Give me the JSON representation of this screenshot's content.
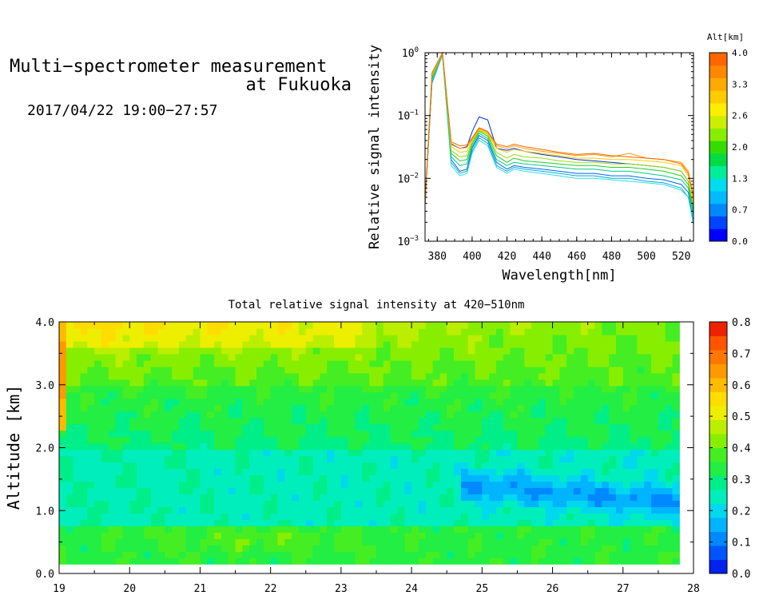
{
  "header": {
    "title_line1": "Multi−spectrometer measurement",
    "title_line2": "at Fukuoka",
    "datetime": "2017/04/22 19:00−27:57"
  },
  "chart_data": [
    {
      "type": "line",
      "ylabel": "Relative signal intensity",
      "xlabel": "Wavelength[nm]",
      "xlim": [
        373,
        527
      ],
      "ylim": [
        0.001,
        1
      ],
      "yscale": "log",
      "xticks": [
        380,
        400,
        420,
        440,
        460,
        480,
        500,
        520
      ],
      "ytick_labels": [
        {
          "base": "10",
          "exp": "0"
        },
        {
          "base": "10",
          "exp": "−1"
        },
        {
          "base": "10",
          "exp": "−2"
        },
        {
          "base": "10",
          "exp": "−3"
        }
      ],
      "x": [
        373,
        377,
        383,
        388,
        393,
        397,
        400,
        404,
        409,
        414,
        420,
        424,
        430,
        440,
        450,
        460,
        470,
        480,
        490,
        500,
        510,
        520,
        524,
        527
      ],
      "series": [
        {
          "color": "#0033cc",
          "values": [
            0.004,
            0.35,
            0.95,
            0.035,
            0.03,
            0.032,
            0.055,
            0.095,
            0.085,
            0.03,
            0.028,
            0.03,
            0.027,
            0.024,
            0.022,
            0.02,
            0.019,
            0.018,
            0.017,
            0.016,
            0.015,
            0.013,
            0.009,
            0.003
          ]
        },
        {
          "color": "#0066ee",
          "values": [
            0.004,
            0.33,
            0.93,
            0.02,
            0.013,
            0.014,
            0.03,
            0.048,
            0.04,
            0.018,
            0.014,
            0.016,
            0.015,
            0.014,
            0.013,
            0.012,
            0.012,
            0.011,
            0.011,
            0.01,
            0.0095,
            0.008,
            0.006,
            0.002
          ]
        },
        {
          "color": "#00aadd",
          "values": [
            0.004,
            0.34,
            0.94,
            0.018,
            0.012,
            0.013,
            0.027,
            0.044,
            0.036,
            0.016,
            0.013,
            0.015,
            0.014,
            0.013,
            0.012,
            0.011,
            0.011,
            0.01,
            0.01,
            0.009,
            0.0085,
            0.007,
            0.005,
            0.002
          ]
        },
        {
          "color": "#33dddd",
          "values": [
            0.004,
            0.36,
            0.95,
            0.016,
            0.011,
            0.012,
            0.025,
            0.04,
            0.033,
            0.015,
            0.012,
            0.014,
            0.013,
            0.012,
            0.011,
            0.01,
            0.01,
            0.0095,
            0.009,
            0.0085,
            0.008,
            0.0065,
            0.005,
            0.0018
          ]
        },
        {
          "color": "#00cc88",
          "values": [
            0.004,
            0.38,
            0.96,
            0.022,
            0.016,
            0.017,
            0.032,
            0.052,
            0.043,
            0.02,
            0.016,
            0.018,
            0.017,
            0.016,
            0.015,
            0.014,
            0.014,
            0.013,
            0.013,
            0.012,
            0.011,
            0.0095,
            0.007,
            0.0025
          ]
        },
        {
          "color": "#22cc22",
          "values": [
            0.004,
            0.4,
            0.97,
            0.025,
            0.019,
            0.02,
            0.035,
            0.056,
            0.047,
            0.023,
            0.018,
            0.021,
            0.019,
            0.018,
            0.017,
            0.016,
            0.016,
            0.015,
            0.015,
            0.014,
            0.013,
            0.011,
            0.008,
            0.003
          ]
        },
        {
          "color": "#99dd00",
          "values": [
            0.004,
            0.42,
            0.98,
            0.028,
            0.022,
            0.023,
            0.038,
            0.058,
            0.05,
            0.026,
            0.021,
            0.024,
            0.022,
            0.021,
            0.019,
            0.018,
            0.018,
            0.017,
            0.017,
            0.016,
            0.015,
            0.013,
            0.009,
            0.0035
          ]
        },
        {
          "color": "#ffcc00",
          "values": [
            0.004,
            0.44,
            0.99,
            0.032,
            0.026,
            0.027,
            0.04,
            0.06,
            0.052,
            0.03,
            0.026,
            0.029,
            0.027,
            0.025,
            0.023,
            0.021,
            0.021,
            0.02,
            0.02,
            0.019,
            0.018,
            0.016,
            0.011,
            0.004
          ]
        },
        {
          "color": "#ff9900",
          "values": [
            0.004,
            0.46,
            1.0,
            0.036,
            0.03,
            0.031,
            0.042,
            0.062,
            0.054,
            0.033,
            0.03,
            0.033,
            0.03,
            0.027,
            0.025,
            0.023,
            0.024,
            0.022,
            0.025,
            0.021,
            0.02,
            0.018,
            0.013,
            0.005
          ]
        },
        {
          "color": "#ee6600",
          "values": [
            0.004,
            0.48,
            1.0,
            0.038,
            0.033,
            0.034,
            0.044,
            0.064,
            0.056,
            0.035,
            0.032,
            0.035,
            0.032,
            0.029,
            0.026,
            0.024,
            0.025,
            0.023,
            0.022,
            0.021,
            0.02,
            0.017,
            0.012,
            0.005
          ]
        }
      ],
      "colorbar": {
        "title": "Alt[km]",
        "labels": [
          "4.0",
          "3.3",
          "2.6",
          "2.0",
          "1.3",
          "0.7",
          "0.0"
        ],
        "colors": [
          "#0000ff",
          "#0044ff",
          "#0088ff",
          "#00bbff",
          "#00ddee",
          "#00ee99",
          "#00dd44",
          "#33dd00",
          "#88ee00",
          "#ccee00",
          "#ffee00",
          "#ffcc00",
          "#ffaa00",
          "#ff8800",
          "#ff6600"
        ]
      }
    },
    {
      "type": "heatmap",
      "title": "Total relative signal intensity at 420−510nm",
      "ylabel": "Altitude [km]",
      "xlim": [
        19,
        28
      ],
      "ylim": [
        0,
        4
      ],
      "xticks": [
        "19",
        "20",
        "21",
        "22",
        "23",
        "24",
        "25",
        "26",
        "27",
        "28"
      ],
      "yticks": [
        "0.0",
        "1.0",
        "2.0",
        "3.0",
        "4.0"
      ],
      "data_x_range": [
        19,
        27.8
      ],
      "data_y_range": [
        0.15,
        4.0
      ],
      "colorbar": {
        "labels": [
          "0.8",
          "0.7",
          "0.6",
          "0.5",
          "0.4",
          "0.3",
          "0.2",
          "0.1",
          "0.0"
        ],
        "range": [
          0,
          0.8
        ],
        "colors": [
          "#0022ee",
          "#0055ff",
          "#0088ff",
          "#00b4ff",
          "#00d8ee",
          "#00eebb",
          "#00ee88",
          "#22ee44",
          "#44ee22",
          "#88ee00",
          "#bbee00",
          "#eeee00",
          "#ffdd00",
          "#ffbb00",
          "#ff9900",
          "#ff7700",
          "#ff5500",
          "#ee2200"
        ]
      }
    }
  ]
}
